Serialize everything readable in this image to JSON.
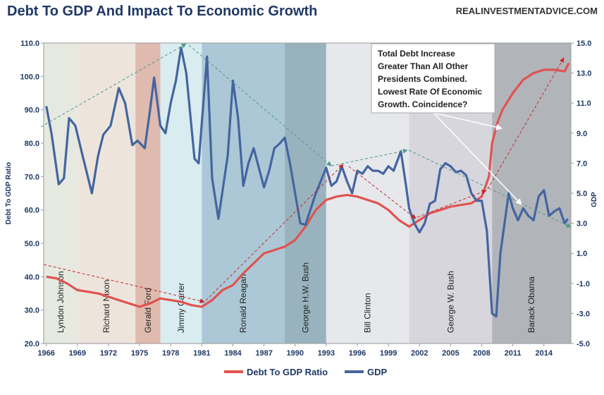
{
  "chart_data": {
    "type": "line",
    "title": "Debt To GDP And Impact To Economic Growth",
    "source": "REALINVESTMENTADVICE.COM",
    "ylabel": "Debt To GDP Ratio",
    "y2label": "GDP",
    "xlim": [
      1965.75,
      2016.6
    ],
    "xticks": [
      1966,
      1969,
      1972,
      1975,
      1978,
      1981,
      1984,
      1987,
      1990,
      1993,
      1996,
      1999,
      2002,
      2005,
      2008,
      2011,
      2014
    ],
    "ylim": [
      20,
      110
    ],
    "yticks": [
      {
        "value": 20,
        "label": "20.0"
      },
      {
        "value": 30,
        "label": "30.0"
      },
      {
        "value": 40,
        "label": "40.0"
      },
      {
        "value": 50,
        "label": "50.0"
      },
      {
        "value": 60,
        "label": "60.0"
      },
      {
        "value": 70,
        "label": "70.0"
      },
      {
        "value": 80,
        "label": "80.0"
      },
      {
        "value": 90,
        "label": "90.0"
      },
      {
        "value": 100,
        "label": "100.0"
      },
      {
        "value": 110,
        "label": "110.0"
      }
    ],
    "y2lim": [
      -5,
      15
    ],
    "y2ticks": [
      {
        "value": -5,
        "label": "-5.0"
      },
      {
        "value": -3,
        "label": "-3.0"
      },
      {
        "value": -1,
        "label": "-1.0"
      },
      {
        "value": 1,
        "label": "1.0"
      },
      {
        "value": 3,
        "label": "3.0"
      },
      {
        "value": 5,
        "label": "5.0"
      },
      {
        "value": 7,
        "label": "7.0"
      },
      {
        "value": 9,
        "label": "9.0"
      },
      {
        "value": 11,
        "label": "11.0"
      },
      {
        "value": 13,
        "label": "13.0"
      },
      {
        "value": 15,
        "label": "15.0"
      }
    ],
    "presidents": [
      {
        "name": "Lyndon Johnson",
        "start": 1965.75,
        "end": 1969,
        "color": "#e2e7dd"
      },
      {
        "name": "Richard Nixon",
        "start": 1969,
        "end": 1974.6,
        "color": "#ebe2d8"
      },
      {
        "name": "Gerald Ford",
        "start": 1974.6,
        "end": 1977,
        "color": "#dbb3a5"
      },
      {
        "name": "Jimmy Carter",
        "start": 1977,
        "end": 1981,
        "color": "#d5ebee"
      },
      {
        "name": "Ronald Reagan",
        "start": 1981,
        "end": 1989,
        "color": "#a3c2d1"
      },
      {
        "name": "George H.W. Bush",
        "start": 1989,
        "end": 1993,
        "color": "#8eabb7"
      },
      {
        "name": "Bill Clinton",
        "start": 1993,
        "end": 2001,
        "color": "#e3e6ea"
      },
      {
        "name": "George W. Bush",
        "start": 2001,
        "end": 2009,
        "color": "#d3d2d9"
      },
      {
        "name": "Barack Obama",
        "start": 2009,
        "end": 2016.6,
        "color": "#a9adb2"
      }
    ],
    "annotation": [
      "Total Debt Increase",
      "Greater Than All Other",
      "Presidents Combined.",
      "Lowest Rate Of Economic",
      "Growth. Coincidence?"
    ],
    "series": [
      {
        "name": "Debt To GDP Ratio",
        "color": "#e05350",
        "x": [
          1966,
          1967,
          1968,
          1969,
          1970,
          1971,
          1972,
          1973,
          1974,
          1975,
          1976,
          1977,
          1978,
          1979,
          1980,
          1981,
          1982,
          1983,
          1984,
          1985,
          1986,
          1987,
          1988,
          1989,
          1990,
          1991,
          1992,
          1993,
          1994,
          1995,
          1996,
          1997,
          1998,
          1999,
          2000,
          2001,
          2002,
          2003,
          2004,
          2005,
          2006,
          2007,
          2008,
          2008.7,
          2009,
          2009.5,
          2010,
          2011,
          2012,
          2013,
          2014,
          2015,
          2016,
          2016.4
        ],
        "values": [
          40,
          39.5,
          38,
          36,
          35.5,
          35,
          34,
          33,
          32,
          31,
          32,
          33.5,
          33,
          32.5,
          31.5,
          31,
          33,
          36,
          37.5,
          41,
          44,
          47,
          48,
          49,
          51,
          55,
          60,
          63,
          64,
          64.5,
          64,
          63,
          62,
          60,
          57,
          55,
          57,
          59,
          60,
          61,
          61.5,
          62,
          64,
          70,
          80,
          86,
          90,
          95,
          99,
          101,
          102,
          102,
          101.5,
          104
        ]
      },
      {
        "name": "GDP",
        "color": "#4465a0",
        "axis": "y2",
        "x": [
          1966,
          1966.5,
          1967.2,
          1967.7,
          1968.2,
          1968.8,
          1969.5,
          1970.4,
          1971,
          1971.5,
          1972.2,
          1973,
          1973.6,
          1974.3,
          1974.8,
          1975.5,
          1976,
          1976.4,
          1977,
          1977.5,
          1978,
          1978.5,
          1979,
          1979.5,
          1980.3,
          1980.7,
          1981.5,
          1982,
          1982.6,
          1983.5,
          1984,
          1984.5,
          1985,
          1985.5,
          1986,
          1987,
          1987.5,
          1988,
          1988.5,
          1989,
          1989.5,
          1990,
          1990.5,
          1991,
          1992,
          1993,
          1993.5,
          1994,
          1994.5,
          1995,
          1995.5,
          1996,
          1996.5,
          1997,
          1997.5,
          1998,
          1998.5,
          1999,
          1999.5,
          2000.2,
          2000.7,
          2001,
          2001.5,
          2002,
          2002.5,
          2003,
          2003.5,
          2004,
          2004.5,
          2005,
          2005.5,
          2006,
          2006.5,
          2007,
          2007.5,
          2008,
          2008.5,
          2009,
          2009.4,
          2009.8,
          2010.2,
          2010.6,
          2011,
          2011.5,
          2012,
          2012.5,
          2013,
          2013.5,
          2014,
          2014.5,
          2015,
          2015.5,
          2016,
          2016.3
        ],
        "values": [
          10.8,
          9,
          5.6,
          6,
          10,
          9.5,
          7.5,
          5,
          7.5,
          8.9,
          9.5,
          12,
          11,
          8.2,
          8.5,
          8,
          10.5,
          12.7,
          9.5,
          9,
          11,
          12.5,
          14.7,
          13,
          7.3,
          7,
          14.1,
          6,
          3.3,
          7.5,
          12.5,
          10,
          5.5,
          7,
          8,
          5.4,
          6.5,
          8.0,
          8.3,
          8.7,
          7,
          5,
          3,
          2.9,
          5,
          6.7,
          5.5,
          5.8,
          6.8,
          5.8,
          5,
          6.5,
          6.3,
          6.8,
          6.5,
          6.5,
          6.3,
          6.8,
          6.5,
          7.8,
          5.5,
          4,
          3,
          2.4,
          3,
          4.3,
          4.5,
          6.6,
          7,
          6.8,
          6.4,
          6.5,
          6.2,
          5,
          4.5,
          4.5,
          2.5,
          -3,
          -3.2,
          1,
          3,
          5,
          4,
          3.2,
          4,
          3.5,
          3.2,
          4.8,
          5.2,
          3.5,
          3.8,
          4,
          3.0,
          3.3
        ]
      }
    ]
  }
}
